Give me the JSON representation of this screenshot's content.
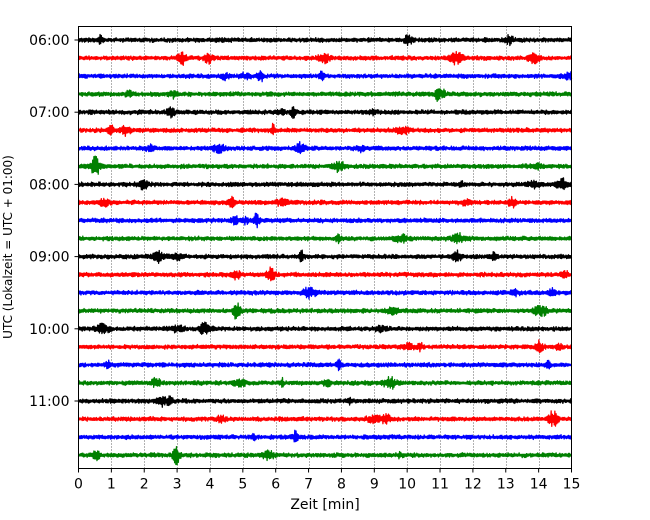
{
  "chart_data": {
    "type": "line",
    "title": "",
    "xlabel": "Zeit  [min]",
    "ylabel": "UTC (Lokalzeit = UTC + 01:00)",
    "xlim": [
      0,
      15
    ],
    "x_ticks": [
      "0",
      "1",
      "2",
      "3",
      "4",
      "5",
      "6",
      "7",
      "8",
      "9",
      "10",
      "11",
      "12",
      "13",
      "14",
      "15"
    ],
    "y_ticks": [
      "06:00",
      "07:00",
      "08:00",
      "09:00",
      "10:00",
      "11:00"
    ],
    "trace_start": "06:00",
    "trace_interval_min": 15,
    "trace_colors": [
      "#000000",
      "#ff0000",
      "#0000ff",
      "#008000"
    ],
    "grid": "vertical dotted lines at each minute",
    "legend": "none",
    "series": [
      {
        "start": "06:00",
        "color": "#000000"
      },
      {
        "start": "06:15",
        "color": "#ff0000"
      },
      {
        "start": "06:30",
        "color": "#0000ff"
      },
      {
        "start": "06:45",
        "color": "#008000"
      },
      {
        "start": "07:00",
        "color": "#000000"
      },
      {
        "start": "07:15",
        "color": "#ff0000"
      },
      {
        "start": "07:30",
        "color": "#0000ff"
      },
      {
        "start": "07:45",
        "color": "#008000"
      },
      {
        "start": "08:00",
        "color": "#000000"
      },
      {
        "start": "08:15",
        "color": "#ff0000"
      },
      {
        "start": "08:30",
        "color": "#0000ff"
      },
      {
        "start": "08:45",
        "color": "#008000"
      },
      {
        "start": "09:00",
        "color": "#000000"
      },
      {
        "start": "09:15",
        "color": "#ff0000"
      },
      {
        "start": "09:30",
        "color": "#0000ff"
      },
      {
        "start": "09:45",
        "color": "#008000"
      },
      {
        "start": "10:00",
        "color": "#000000"
      },
      {
        "start": "10:15",
        "color": "#ff0000"
      },
      {
        "start": "10:30",
        "color": "#0000ff"
      },
      {
        "start": "10:45",
        "color": "#008000"
      },
      {
        "start": "11:00",
        "color": "#000000"
      },
      {
        "start": "11:15",
        "color": "#ff0000"
      },
      {
        "start": "11:30",
        "color": "#0000ff"
      },
      {
        "start": "11:45",
        "color": "#008000"
      }
    ]
  }
}
